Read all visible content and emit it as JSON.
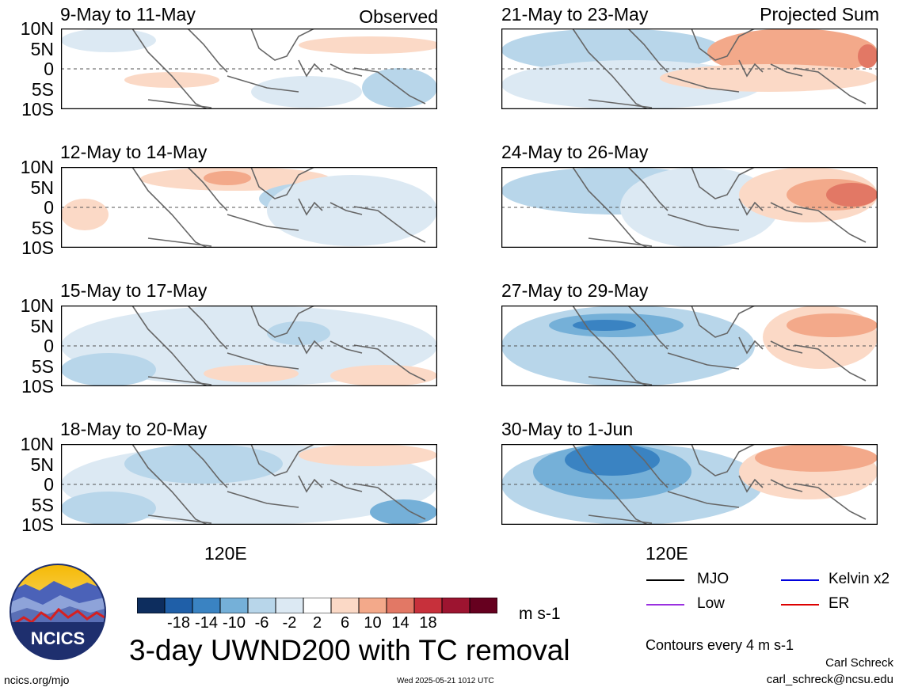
{
  "panels_left": [
    {
      "title": "9-May to 11-May",
      "corner": "Observed"
    },
    {
      "title": "12-May to 14-May",
      "corner": ""
    },
    {
      "title": "15-May to 17-May",
      "corner": ""
    },
    {
      "title": "18-May to 20-May",
      "corner": ""
    }
  ],
  "panels_right": [
    {
      "title": "21-May to 23-May",
      "corner": "Projected Sum"
    },
    {
      "title": "24-May to 26-May",
      "corner": ""
    },
    {
      "title": "27-May to 29-May",
      "corner": ""
    },
    {
      "title": "30-May to 1-Jun",
      "corner": ""
    }
  ],
  "lat_labels": [
    "10N",
    "5N",
    "0",
    "5S",
    "10S"
  ],
  "lon_label": "120E",
  "colorbar": {
    "ticks": [
      "-18",
      "-14",
      "-10",
      "-6",
      "-2",
      "2",
      "6",
      "10",
      "14",
      "18"
    ],
    "colors": [
      "#0d2d5e",
      "#1f5fa8",
      "#3a83c2",
      "#75b0d8",
      "#b8d6ea",
      "#dce9f3",
      "#ffffff",
      "#fbd9c6",
      "#f3a98a",
      "#e27865",
      "#c7303b",
      "#9d1430",
      "#66001f"
    ],
    "units": "m s-1"
  },
  "main_title": "3-day UWND200 with TC removal",
  "legend": {
    "items": [
      {
        "label": "MJO",
        "color": "#000000"
      },
      {
        "label": "Kelvin x2",
        "color": "#0000dd"
      },
      {
        "label": "Low",
        "color": "#9a30e0"
      },
      {
        "label": "ER",
        "color": "#dd0000"
      }
    ],
    "contour_note": "Contours every 4 m s-1"
  },
  "logo_text": "NCICS",
  "author": "Carl Schreck",
  "email": "carl_schreck@ncsu.edu",
  "site": "ncics.org/mjo",
  "timestamp": "Wed 2025-05-21 1012 UTC"
}
